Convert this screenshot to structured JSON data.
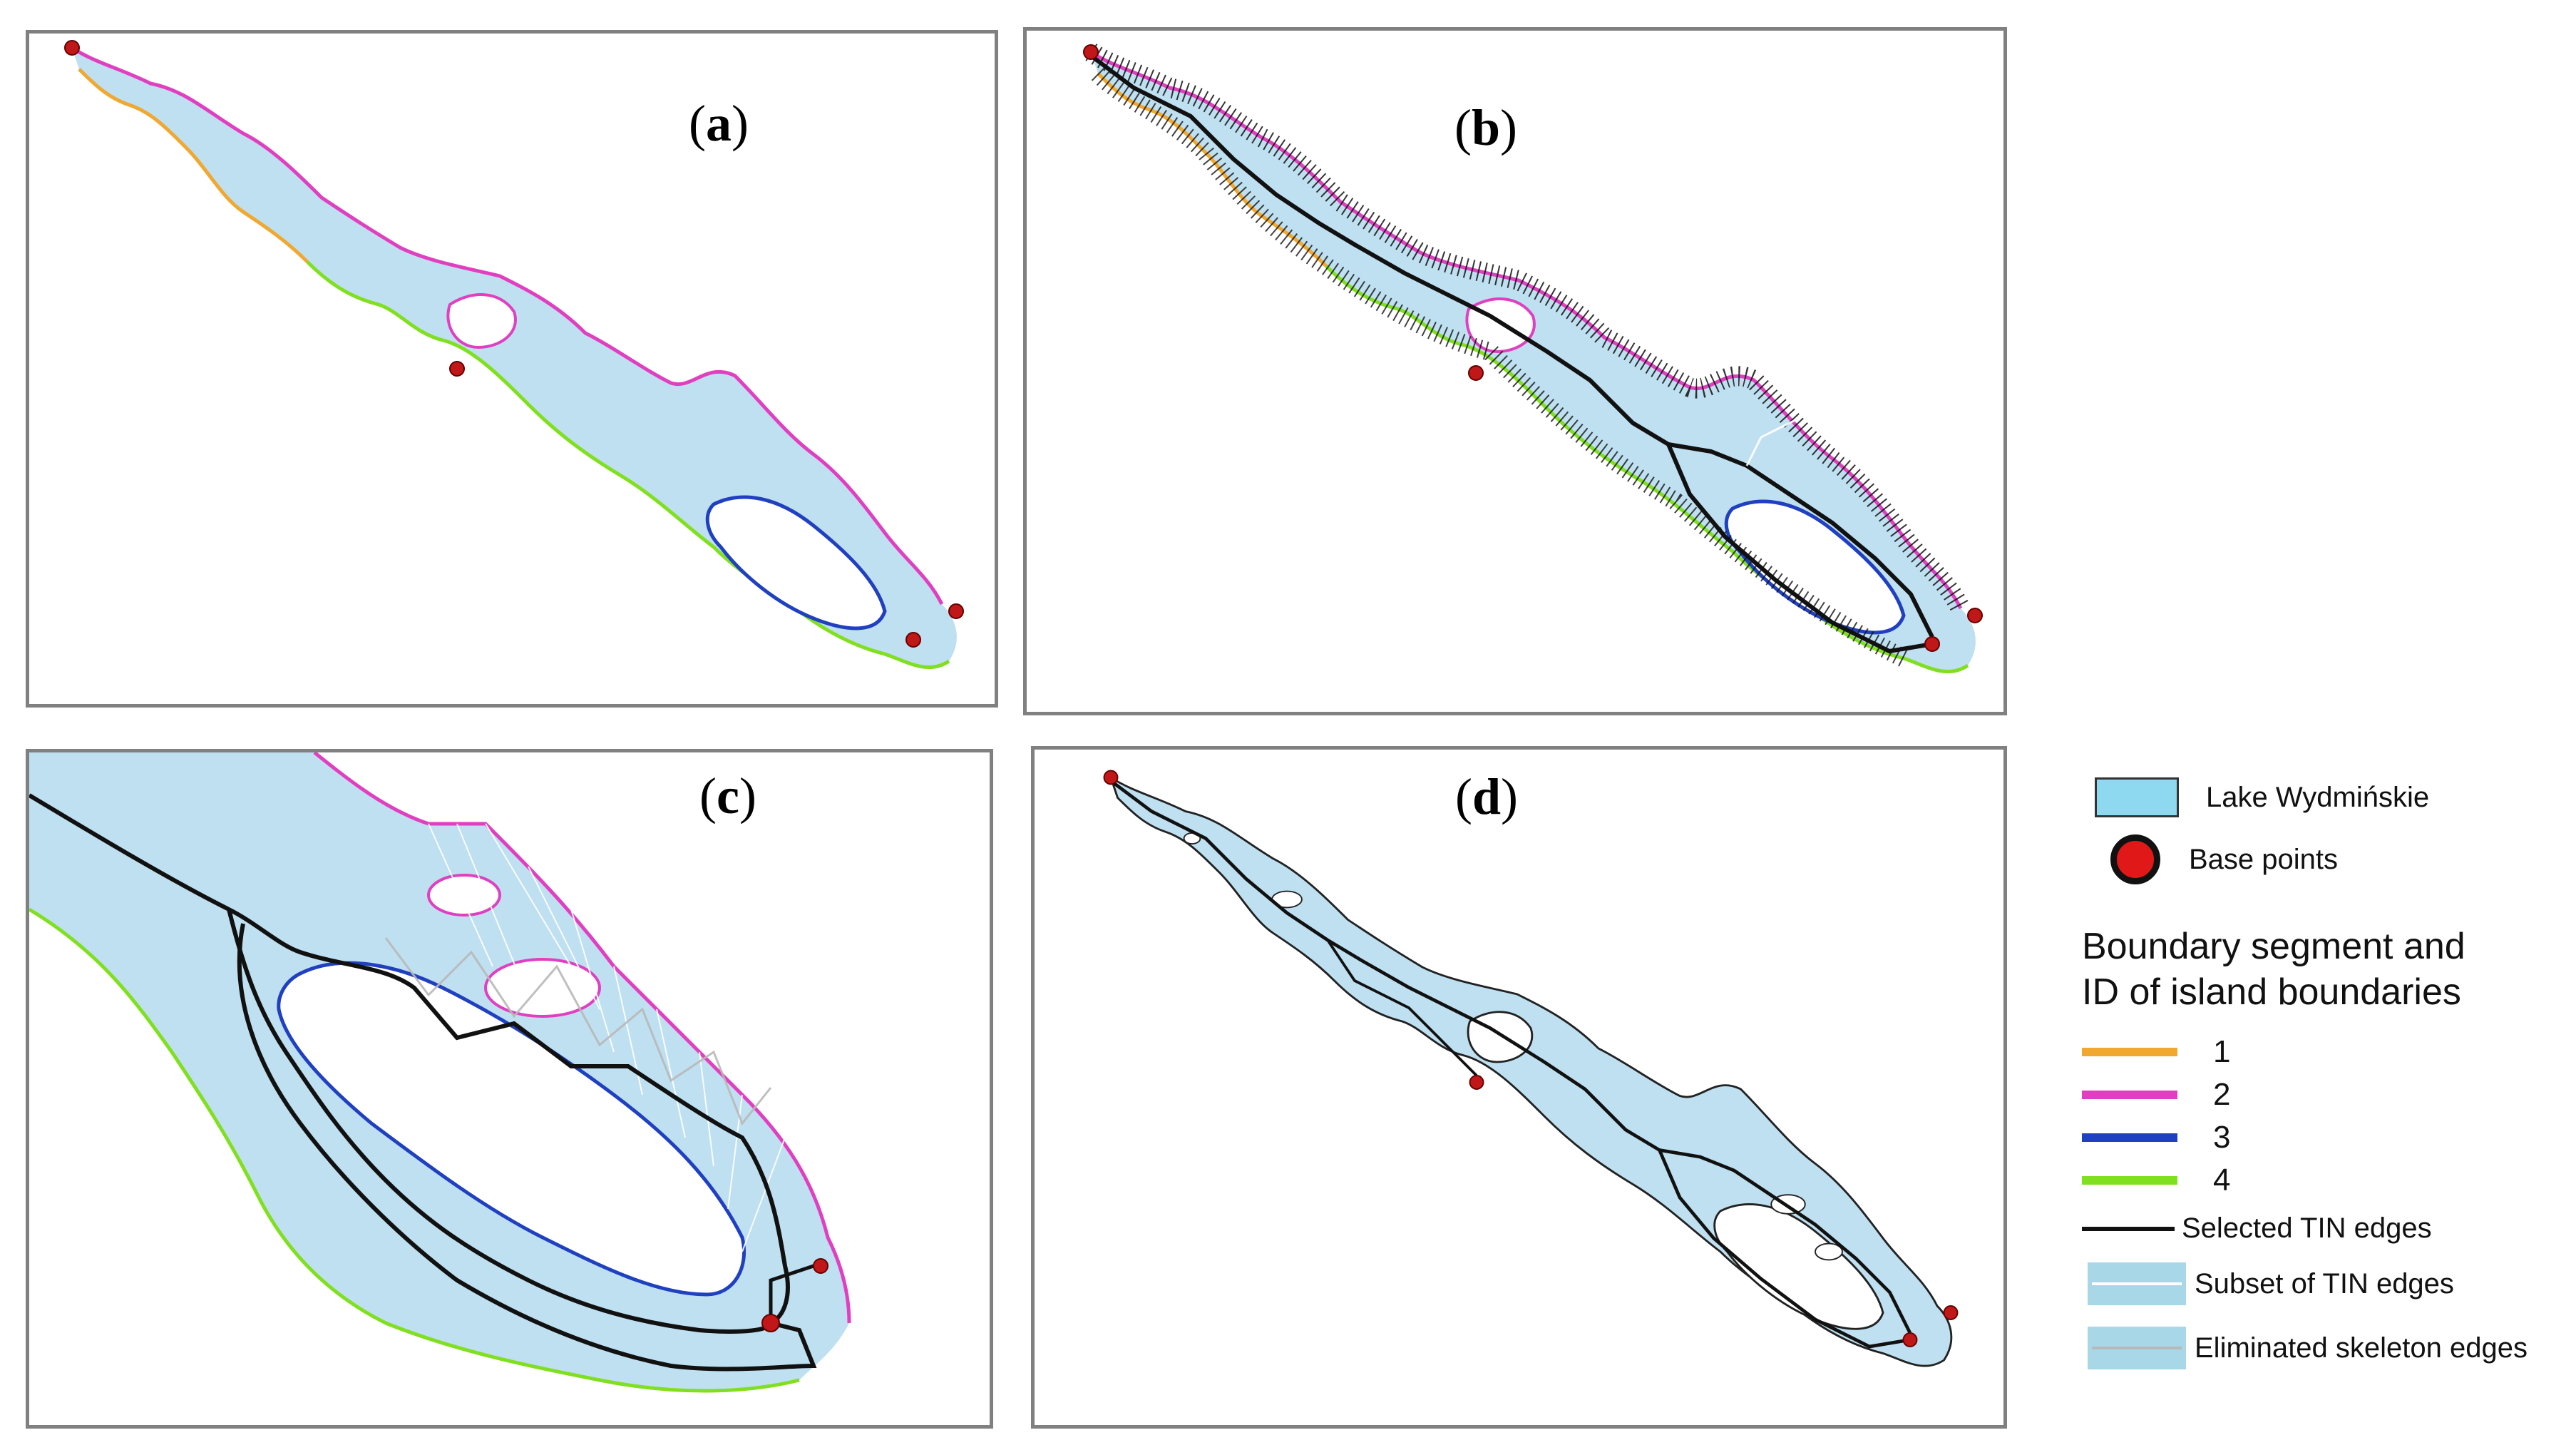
{
  "panels": [
    {
      "id": "a",
      "label": "a"
    },
    {
      "id": "b",
      "label": "b"
    },
    {
      "id": "c",
      "label": "c"
    },
    {
      "id": "d",
      "label": "d"
    }
  ],
  "legend": {
    "lake": "Lake Wydmińskie",
    "base_points": "Base points",
    "heading_line1": "Boundary segment and",
    "heading_line2": "ID of island boundaries",
    "segments": [
      {
        "id": "1",
        "color": "#f0a830"
      },
      {
        "id": "2",
        "color": "#e040c0"
      },
      {
        "id": "3",
        "color": "#2040c0"
      },
      {
        "id": "4",
        "color": "#80e020"
      }
    ],
    "selected_tin": "Selected TIN edges",
    "subset_tin": "Subset of TIN edges",
    "eliminated": "Eliminated skeleton edges"
  },
  "colors": {
    "lake_fill": "#bfe0f0",
    "legend_lake_fill": "#8ed8f0",
    "base_point": "#c01818",
    "tin_selected": "#111111",
    "tin_subset": "#ffffff",
    "tin_eliminated": "#b8b8b8"
  }
}
